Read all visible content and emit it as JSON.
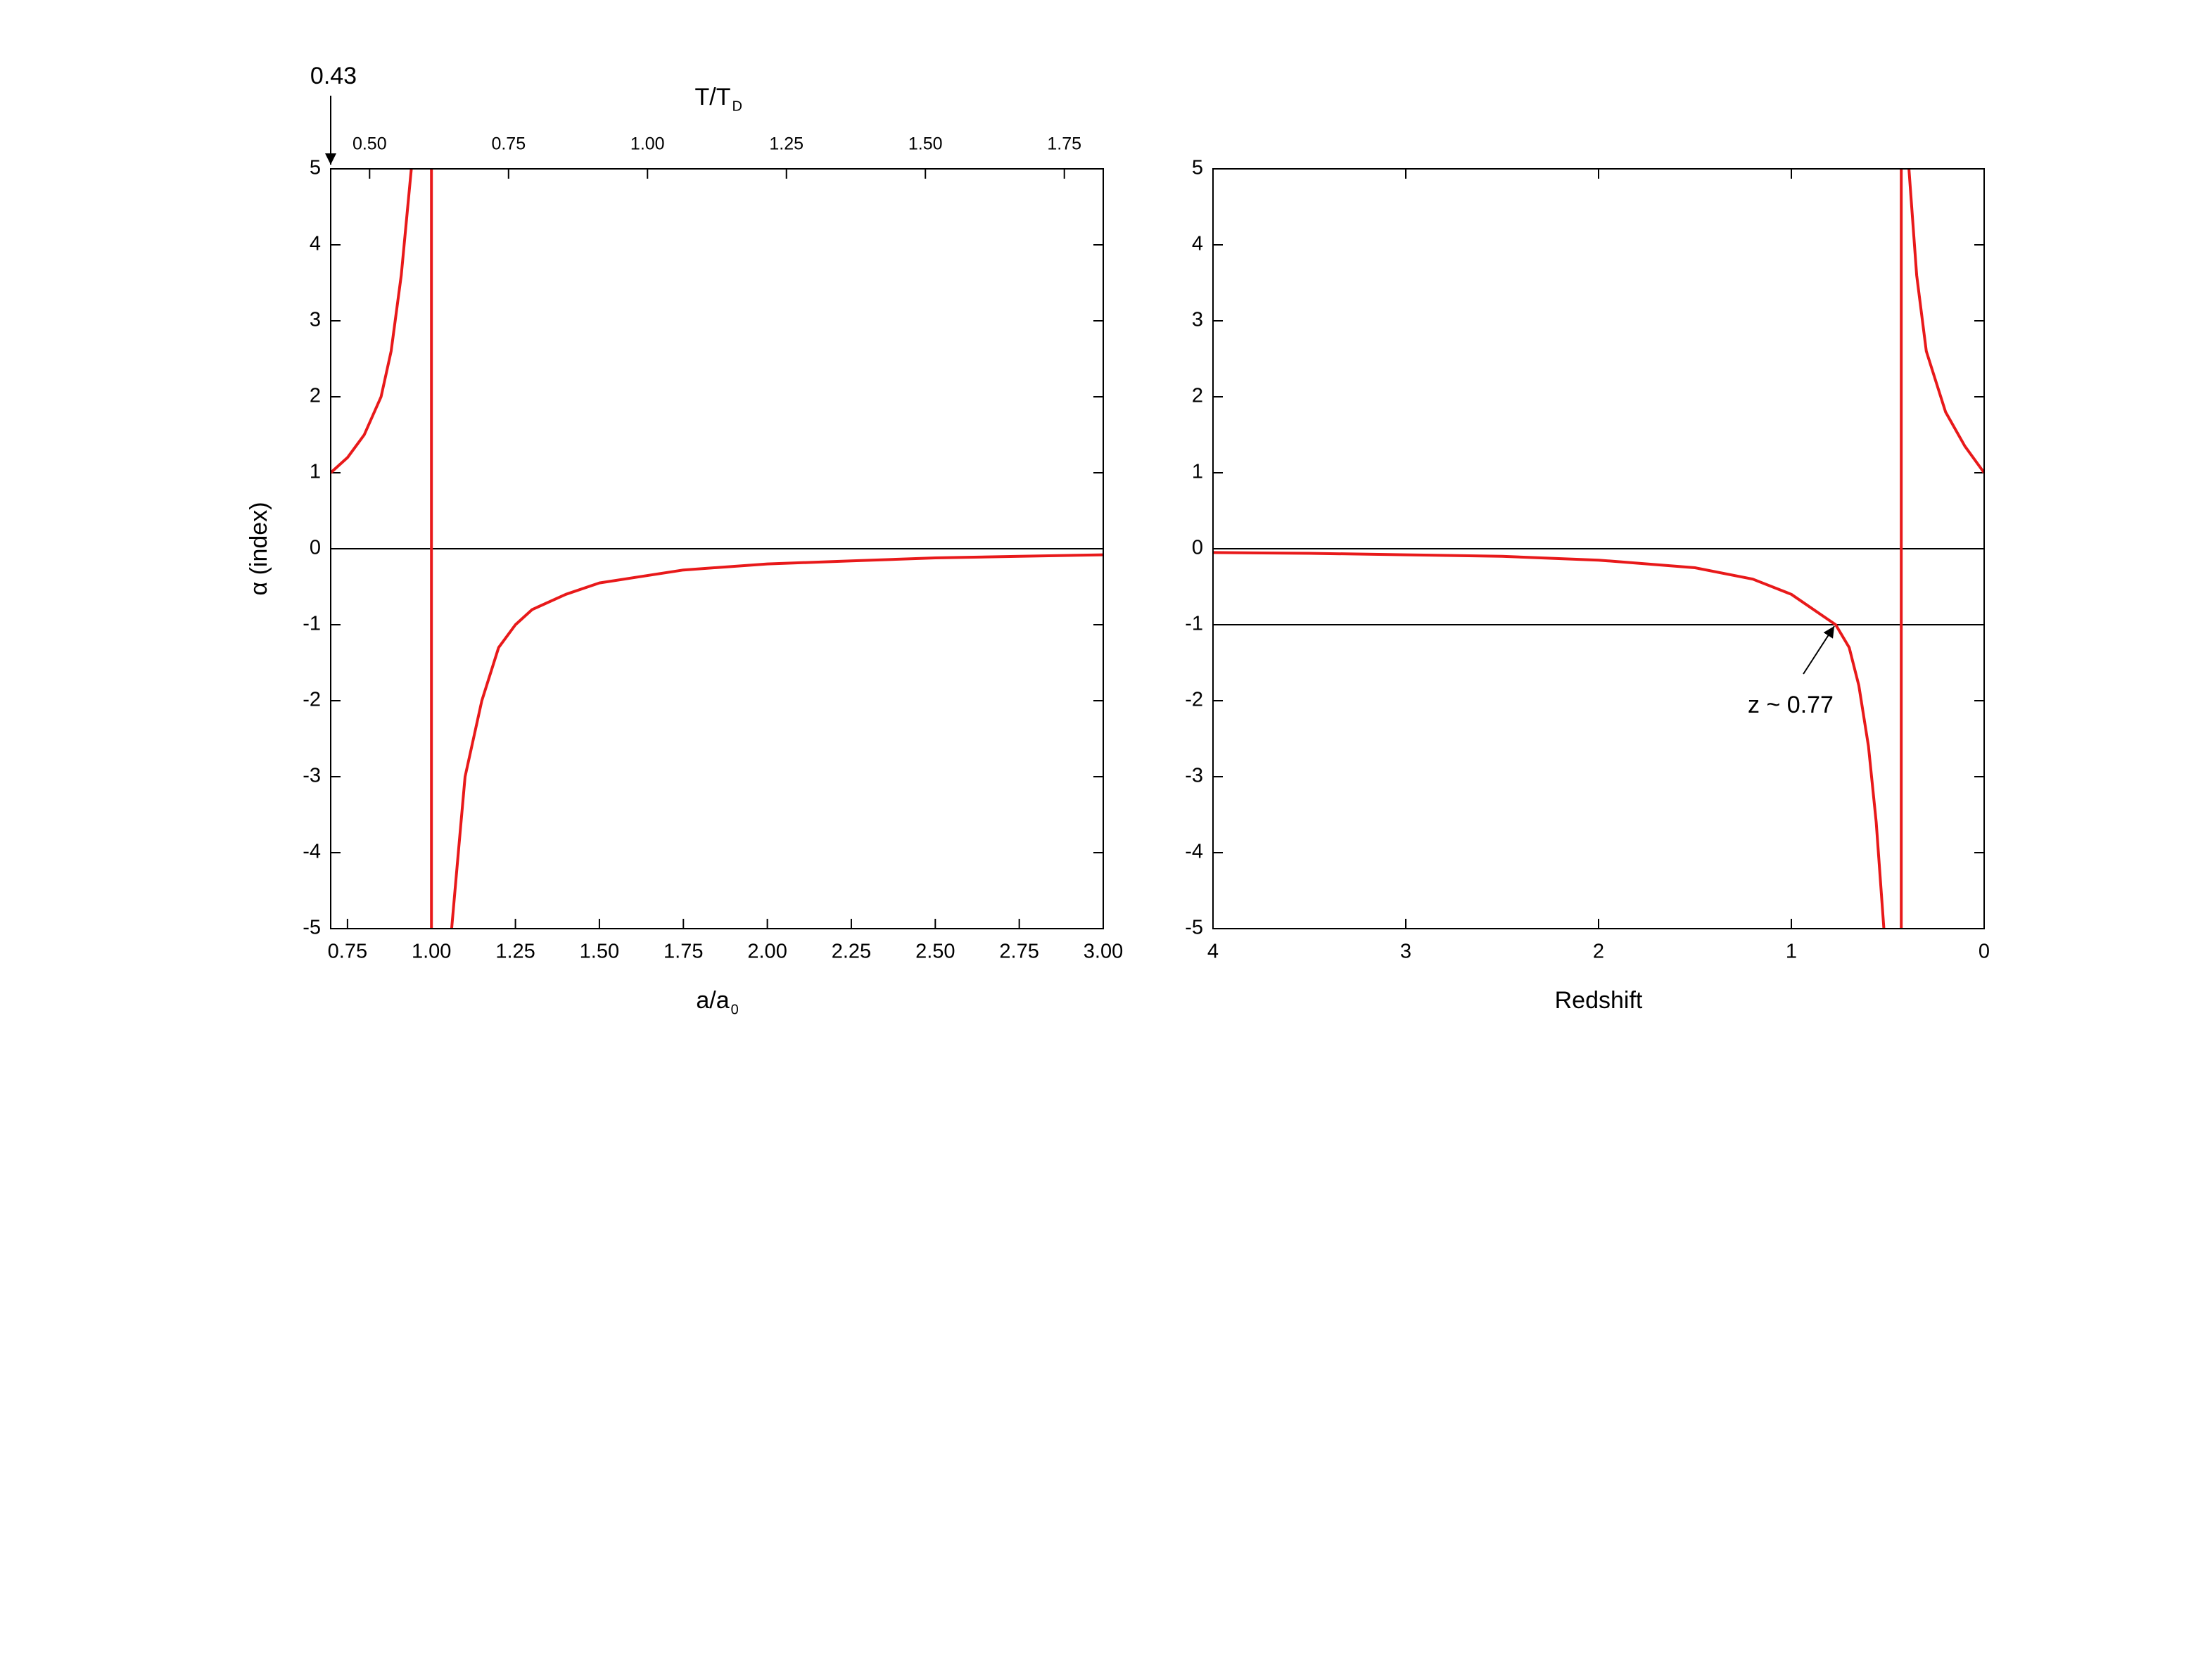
{
  "chart_data": [
    {
      "type": "line",
      "xlabel": "a/a",
      "xlabel_sub": "0",
      "x2label": "T/T",
      "x2label_sub": "D",
      "ylabel": "α (index)",
      "xlim": [
        0.7,
        3.0
      ],
      "xticks": [
        {
          "value": 0.75,
          "label": "0.75"
        },
        {
          "value": 1,
          "label": "1.00"
        },
        {
          "value": 1.25,
          "label": "1.25"
        },
        {
          "value": 1.5,
          "label": "1.50"
        },
        {
          "value": 1.75,
          "label": "1.75"
        },
        {
          "value": 2,
          "label": "2.00"
        },
        {
          "value": 2.25,
          "label": "2.25"
        },
        {
          "value": 2.5,
          "label": "2.50"
        },
        {
          "value": 2.75,
          "label": "2.75"
        },
        {
          "value": 3,
          "label": "3.00"
        }
      ],
      "x2lim": [
        0.43,
        1.82
      ],
      "x2ticks": [
        {
          "value": 0.5,
          "label": "0.50"
        },
        {
          "value": 0.75,
          "label": "0.75"
        },
        {
          "value": 1,
          "label": "1.00"
        },
        {
          "value": 1.25,
          "label": "1.25"
        },
        {
          "value": 1.5,
          "label": "1.50"
        },
        {
          "value": 1.75,
          "label": "1.75"
        }
      ],
      "ylim": [
        -5,
        5
      ],
      "yticks": [
        -5,
        -4,
        -3,
        -2,
        -1,
        0,
        1,
        2,
        3,
        4,
        5
      ],
      "hlines": [
        0
      ],
      "annotations": [
        {
          "text": "0.43",
          "x2": 0.43
        }
      ],
      "series": [
        {
          "color": "#e8191a",
          "x": [
            0.7,
            0.75,
            0.8,
            0.85,
            0.88,
            0.91,
            0.94,
            0.97,
            1.0,
            1.0,
            1.03,
            1.06,
            1.08,
            1.1,
            1.15,
            1.2,
            1.25,
            1.3,
            1.4,
            1.5,
            1.75,
            2.0,
            2.25,
            2.5,
            2.75,
            3.0
          ],
          "values": [
            1.0,
            1.2,
            1.5,
            2.0,
            2.6,
            3.6,
            5,
            null,
            5,
            -5,
            null,
            -5,
            -4,
            -3,
            -2,
            -1.3,
            -1.0,
            -0.8,
            -0.6,
            -0.45,
            -0.28,
            -0.2,
            -0.16,
            -0.12,
            -0.1,
            -0.08
          ]
        }
      ]
    },
    {
      "type": "line",
      "xlabel": "Redshift",
      "xlim": [
        4,
        0
      ],
      "xticks": [
        4,
        3,
        2,
        1,
        0
      ],
      "ylim": [
        -5,
        5
      ],
      "yticks": [
        -5,
        -4,
        -3,
        -2,
        -1,
        0,
        1,
        2,
        3,
        4,
        5
      ],
      "hlines": [
        0,
        -1
      ],
      "annotations": [
        {
          "text": "z ~ 0.77",
          "x": 0.77,
          "y": -1
        }
      ],
      "series": [
        {
          "color": "#e8191a",
          "x": [
            4,
            3.5,
            3,
            2.5,
            2,
            1.5,
            1.2,
            1.0,
            0.77,
            0.7,
            0.65,
            0.6,
            0.56,
            0.52,
            0.47,
            0.43,
            0.43,
            0.41,
            0.39,
            0.35,
            0.3,
            0.2,
            0.1,
            0
          ],
          "values": [
            -0.05,
            -0.06,
            -0.08,
            -0.1,
            -0.15,
            -0.25,
            -0.4,
            -0.6,
            -1.0,
            -1.3,
            -1.8,
            -2.6,
            -3.6,
            -5,
            null,
            -5,
            5,
            null,
            5,
            3.6,
            2.6,
            1.8,
            1.35,
            1.0
          ]
        }
      ]
    }
  ]
}
